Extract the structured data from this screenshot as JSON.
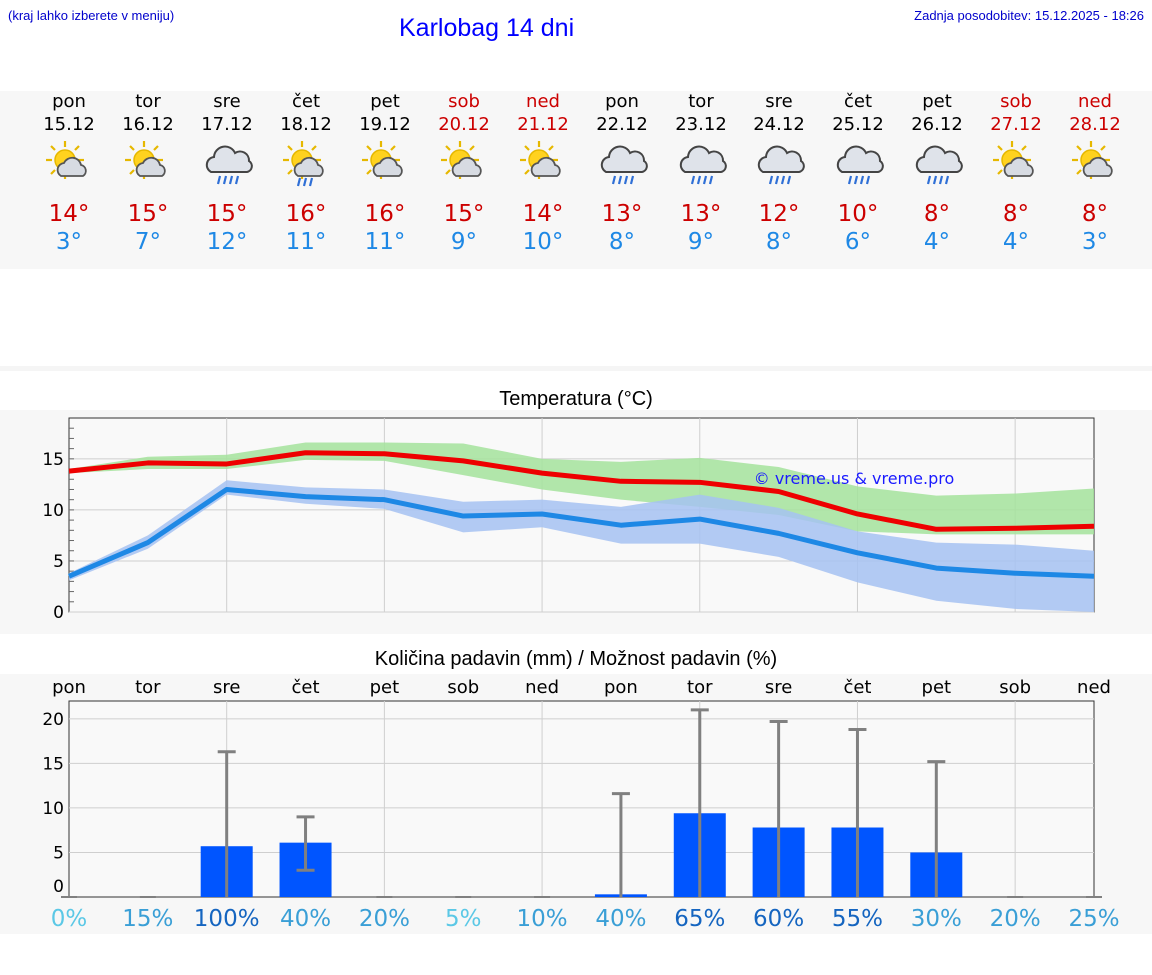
{
  "header": {
    "hint": "(kraj lahko izberete v meniju)",
    "title": "Karlobag 14 dni",
    "updated": "Zadnja posodobitev: 15.12.2025 - 18:26"
  },
  "colors": {
    "max": "#cc0000",
    "min": "#1e88e5",
    "link": "#0000ff",
    "bar": "#0055ff"
  },
  "days": [
    {
      "name": "pon",
      "date": "15.12",
      "max": "14°",
      "min": "3°",
      "icon": "sun-cloud-icon",
      "weekend": false
    },
    {
      "name": "tor",
      "date": "16.12",
      "max": "15°",
      "min": "7°",
      "icon": "sun-cloud-icon",
      "weekend": false
    },
    {
      "name": "sre",
      "date": "17.12",
      "max": "15°",
      "min": "12°",
      "icon": "rain-cloud-icon",
      "weekend": false
    },
    {
      "name": "čet",
      "date": "18.12",
      "max": "16°",
      "min": "11°",
      "icon": "sun-rain-icon",
      "weekend": false
    },
    {
      "name": "pet",
      "date": "19.12",
      "max": "16°",
      "min": "11°",
      "icon": "sun-cloud-icon",
      "weekend": false
    },
    {
      "name": "sob",
      "date": "20.12",
      "max": "15°",
      "min": "9°",
      "icon": "sun-cloud-icon",
      "weekend": true
    },
    {
      "name": "ned",
      "date": "21.12",
      "max": "14°",
      "min": "10°",
      "icon": "sun-cloud-icon",
      "weekend": true
    },
    {
      "name": "pon",
      "date": "22.12",
      "max": "13°",
      "min": "8°",
      "icon": "rain-cloud-icon",
      "weekend": false
    },
    {
      "name": "tor",
      "date": "23.12",
      "max": "13°",
      "min": "9°",
      "icon": "rain-cloud-icon",
      "weekend": false
    },
    {
      "name": "sre",
      "date": "24.12",
      "max": "12°",
      "min": "8°",
      "icon": "rain-cloud-icon",
      "weekend": false
    },
    {
      "name": "čet",
      "date": "25.12",
      "max": "10°",
      "min": "6°",
      "icon": "rain-cloud-icon",
      "weekend": false
    },
    {
      "name": "pet",
      "date": "26.12",
      "max": "8°",
      "min": "4°",
      "icon": "rain-cloud-icon",
      "weekend": false
    },
    {
      "name": "sob",
      "date": "27.12",
      "max": "8°",
      "min": "4°",
      "icon": "sun-cloud-icon",
      "weekend": true
    },
    {
      "name": "ned",
      "date": "28.12",
      "max": "8°",
      "min": "3°",
      "icon": "sun-cloud-icon",
      "weekend": true
    }
  ],
  "chart_data": [
    {
      "type": "line",
      "title": "Temperatura (°C)",
      "ylim": [
        0,
        19
      ],
      "yticks": [
        0,
        5,
        10,
        15
      ],
      "x": [
        0,
        1,
        2,
        3,
        4,
        5,
        6,
        7,
        8,
        9,
        10,
        11,
        12,
        13
      ],
      "series": [
        {
          "name": "max",
          "color": "#ee0000",
          "values": [
            13.8,
            14.6,
            14.5,
            15.6,
            15.5,
            14.8,
            13.6,
            12.8,
            12.7,
            11.8,
            9.6,
            8.1,
            8.2,
            8.4
          ]
        },
        {
          "name": "min",
          "color": "#1e88e5",
          "values": [
            3.5,
            6.8,
            12.0,
            11.3,
            11.0,
            9.4,
            9.6,
            8.5,
            9.1,
            7.7,
            5.8,
            4.3,
            3.8,
            3.5
          ]
        }
      ],
      "bands": [
        {
          "name": "max-range",
          "color": "#a4e39c",
          "upper": [
            14.0,
            15.2,
            15.4,
            16.6,
            16.6,
            16.5,
            15.0,
            14.7,
            15.1,
            14.2,
            12.3,
            11.4,
            11.6,
            12.1
          ],
          "lower": [
            13.6,
            14.0,
            14.0,
            14.9,
            14.8,
            13.4,
            12.0,
            11.0,
            10.3,
            9.5,
            7.9,
            7.6,
            7.6,
            7.6
          ]
        },
        {
          "name": "min-range",
          "color": "#a6c2f2",
          "upper": [
            3.8,
            7.5,
            12.9,
            12.2,
            12.0,
            10.8,
            11.0,
            10.3,
            11.5,
            10.2,
            7.9,
            6.8,
            6.6,
            6.0
          ],
          "lower": [
            3.1,
            6.2,
            11.5,
            10.6,
            10.1,
            7.8,
            8.3,
            6.7,
            6.7,
            5.4,
            2.9,
            1.1,
            0.3,
            0.0
          ]
        }
      ],
      "watermark": "© vreme.us & vreme.pro"
    },
    {
      "type": "bar",
      "title": "Količina padavin (mm) / Možnost padavin (%)",
      "ylim": [
        0,
        22
      ],
      "yticks": [
        0,
        5,
        10,
        15,
        20
      ],
      "categories": [
        "pon",
        "tor",
        "sre",
        "čet",
        "pet",
        "sob",
        "ned",
        "pon",
        "tor",
        "sre",
        "čet",
        "pet",
        "sob",
        "ned"
      ],
      "values": [
        0,
        0,
        5.7,
        6.1,
        0,
        0,
        0,
        0.3,
        9.4,
        7.8,
        7.8,
        5.0,
        0,
        0
      ],
      "error_high": [
        0,
        0,
        16.3,
        9.0,
        0,
        0,
        0,
        11.6,
        21.0,
        19.7,
        18.8,
        15.2,
        0,
        0
      ],
      "error_low": [
        0,
        0,
        0,
        3.0,
        0,
        0,
        0,
        0,
        0,
        0,
        0,
        0,
        0,
        0
      ],
      "probability": [
        "0%",
        "15%",
        "100%",
        "40%",
        "20%",
        "5%",
        "10%",
        "40%",
        "65%",
        "60%",
        "55%",
        "30%",
        "20%",
        "25%"
      ],
      "probability_colors": [
        "#5bc8e6",
        "#3a9fd6",
        "#1565c0",
        "#3a9fd6",
        "#3a9fd6",
        "#5bc8e6",
        "#3a9fd6",
        "#3a9fd6",
        "#1565c0",
        "#1565c0",
        "#1565c0",
        "#3a9fd6",
        "#3a9fd6",
        "#3a9fd6"
      ]
    }
  ]
}
